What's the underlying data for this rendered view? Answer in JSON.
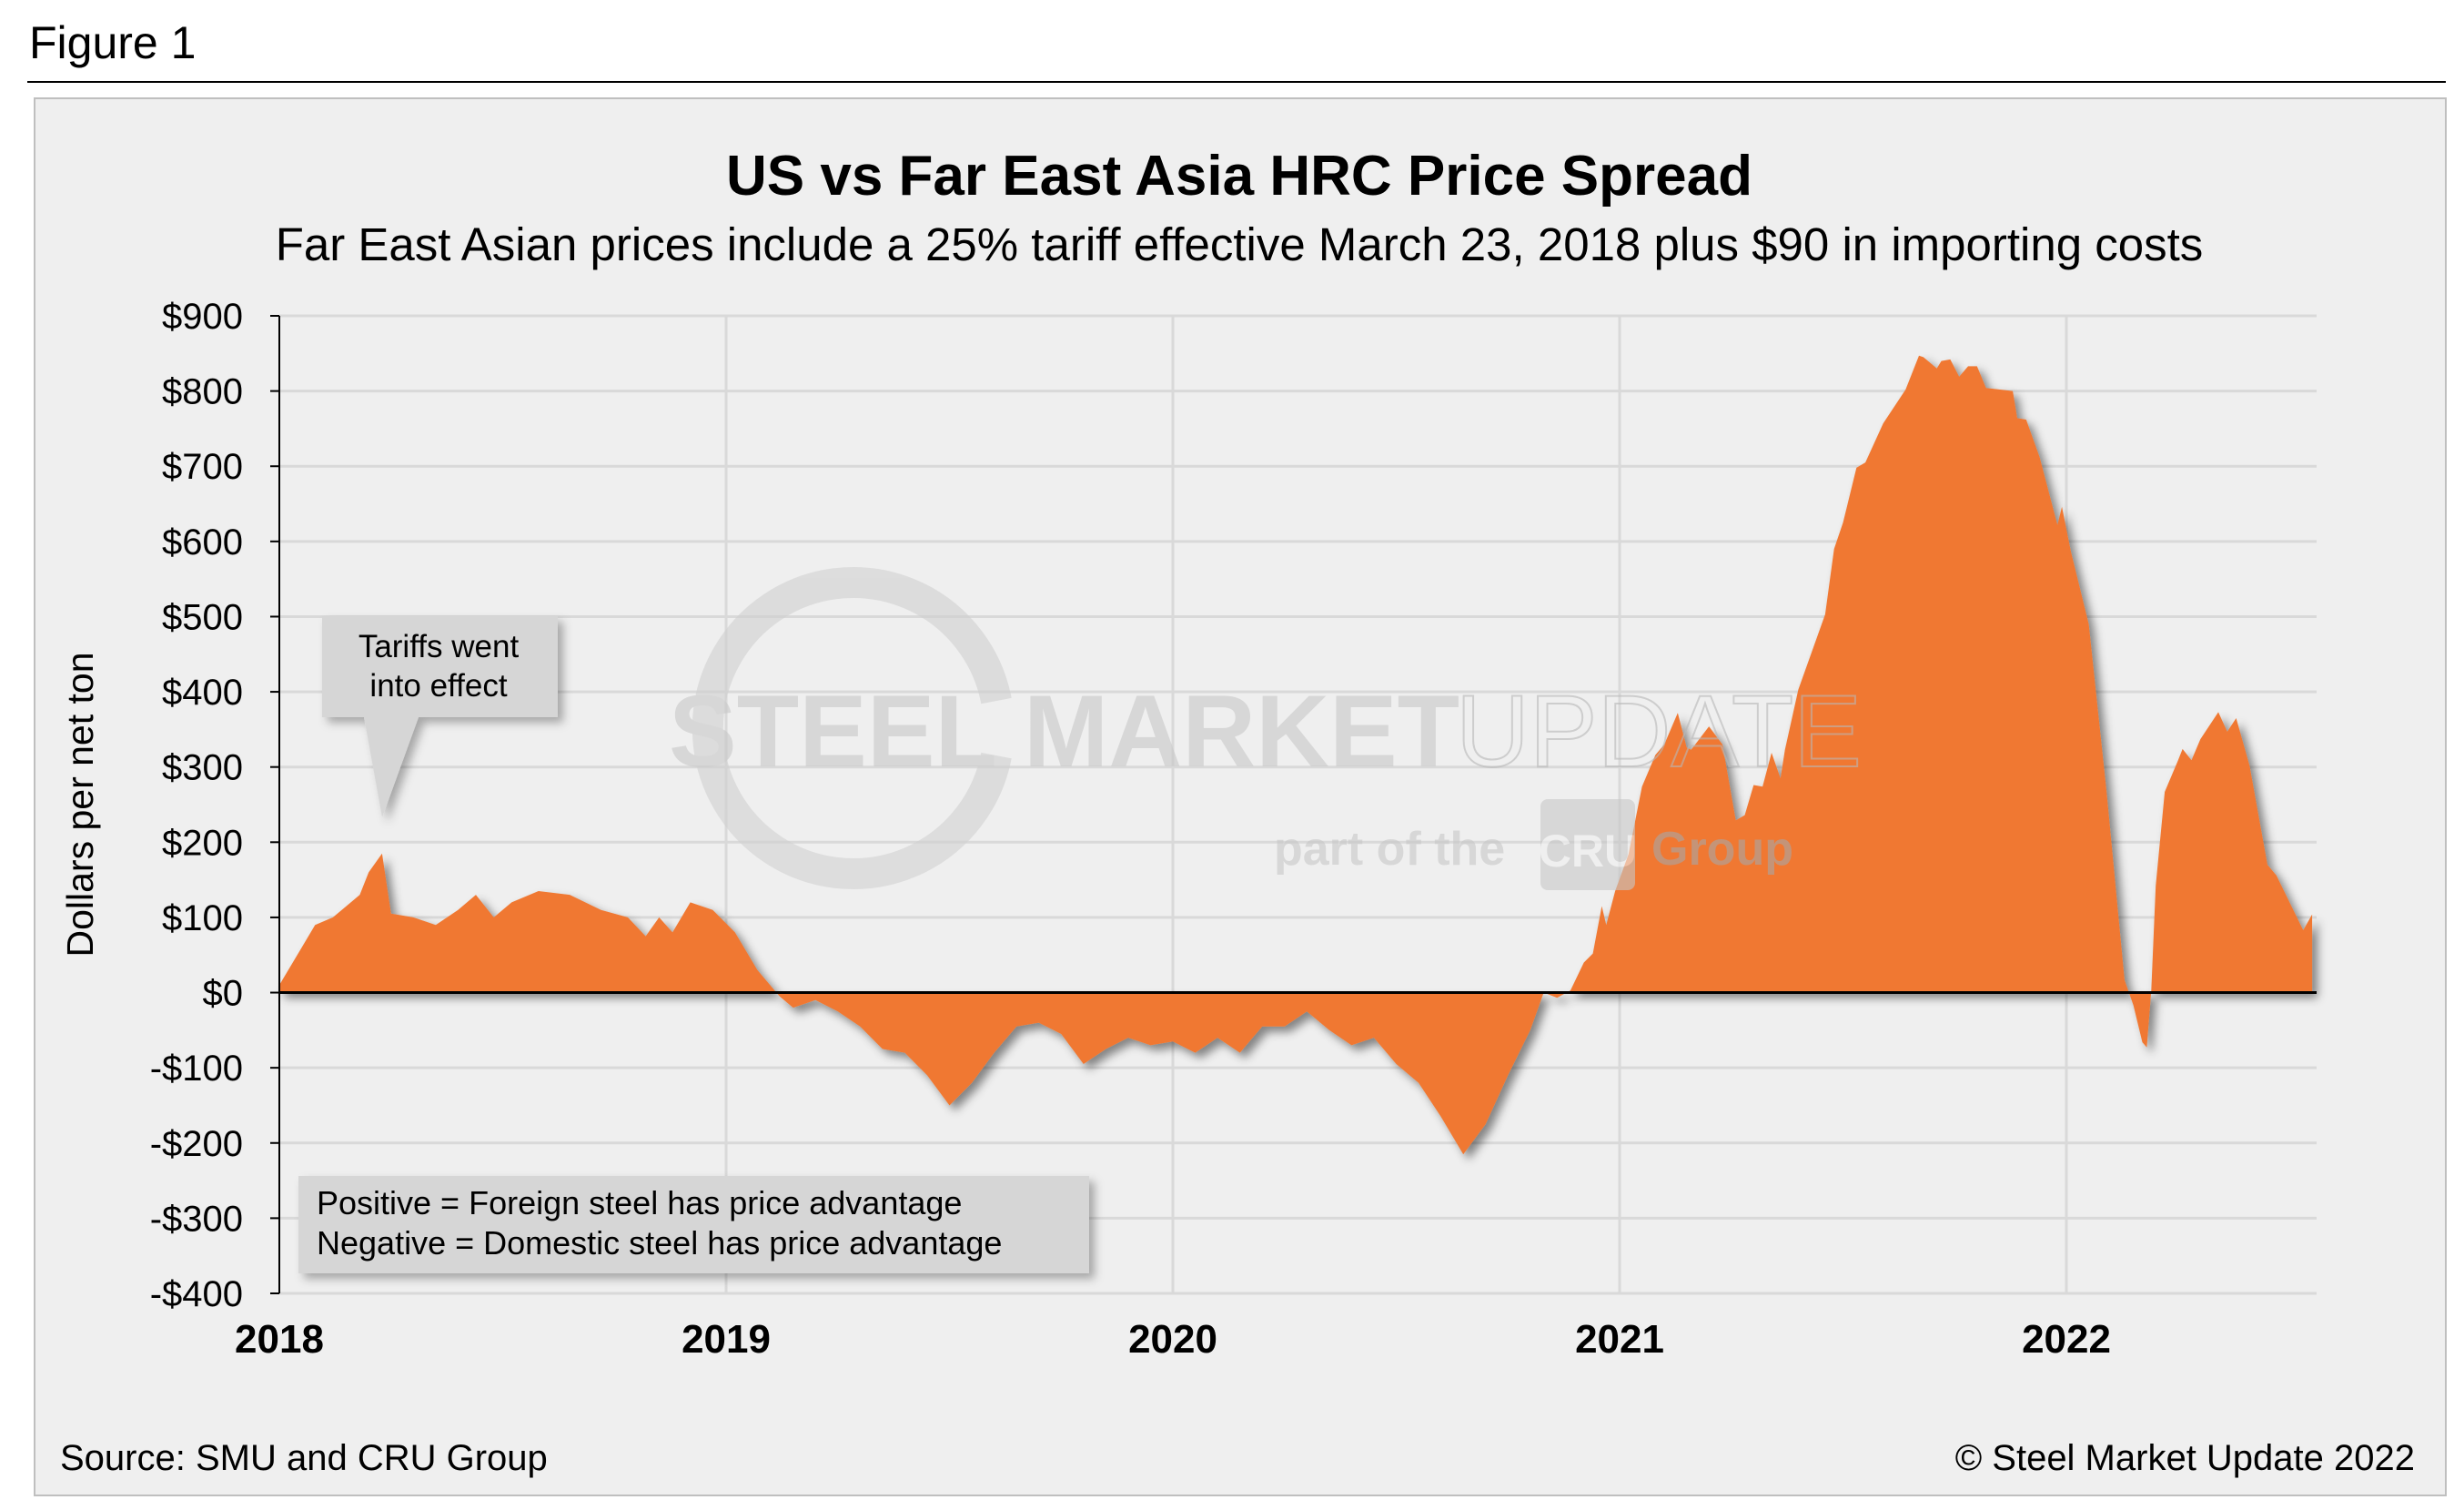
{
  "figure_label": "Figure 1",
  "source": "Source: SMU and CRU Group",
  "copyright": "© Steel Market Update 2022",
  "watermark": {
    "line1_bold": "STEEL MARKET",
    "line1_light": "UPDATE",
    "line2_a": "part of the",
    "line2_logo": "CRU",
    "line2_b": "Group"
  },
  "colors": {
    "area": "#F07830",
    "panel": "#EFEFEF",
    "grid": "#D9D9D9",
    "callout": "#D6D6D6"
  },
  "chart_data": {
    "type": "area",
    "title": "US vs Far East Asia HRC Price Spread",
    "subtitle": "Far East Asian prices include a 25% tariff effective March 23, 2018 plus $90 in importing costs",
    "xlabel": "",
    "ylabel": "Dollars per net ton",
    "xlim": [
      2018,
      2022.56
    ],
    "ylim": [
      -400,
      900
    ],
    "grid": true,
    "x_ticks": [
      2018,
      2019,
      2020,
      2021,
      2022
    ],
    "x_tick_labels": [
      "2018",
      "2019",
      "2020",
      "2021",
      "2022"
    ],
    "y_ticks": [
      900,
      800,
      700,
      600,
      500,
      400,
      300,
      200,
      100,
      0,
      -100,
      -200,
      -300,
      -400
    ],
    "y_tick_labels": [
      "$900",
      "$800",
      "$700",
      "$600",
      "$500",
      "$400",
      "$300",
      "$200",
      "$100",
      "$0",
      "-$100",
      "-$200",
      "-$300",
      "-$400"
    ],
    "annotations": [
      {
        "text_lines": [
          "Tariffs went",
          "into effect"
        ],
        "x": 2018.23,
        "y": 185
      },
      {
        "text_lines": [
          "Positive = Foreign steel has price advantage",
          "Negative = Domestic steel has price advantage"
        ],
        "placement": "bottom-left"
      }
    ],
    "series": [
      {
        "name": "US vs Far East Asia HRC spread",
        "x": [
          2018.0,
          2018.05,
          2018.08,
          2018.12,
          2018.15,
          2018.18,
          2018.2,
          2018.23,
          2018.25,
          2018.3,
          2018.35,
          2018.4,
          2018.44,
          2018.48,
          2018.52,
          2018.58,
          2018.65,
          2018.72,
          2018.78,
          2018.82,
          2018.85,
          2018.88,
          2018.92,
          2018.97,
          2019.02,
          2019.07,
          2019.12,
          2019.15,
          2019.2,
          2019.25,
          2019.3,
          2019.35,
          2019.4,
          2019.45,
          2019.5,
          2019.55,
          2019.6,
          2019.65,
          2019.7,
          2019.75,
          2019.8,
          2019.85,
          2019.9,
          2019.95,
          2020.0,
          2020.05,
          2020.1,
          2020.15,
          2020.2,
          2020.25,
          2020.3,
          2020.35,
          2020.4,
          2020.45,
          2020.5,
          2020.55,
          2020.6,
          2020.65,
          2020.7,
          2020.75,
          2020.8,
          2020.83,
          2020.86,
          2020.89,
          2020.92,
          2020.94,
          2020.96,
          2020.97,
          2020.99,
          2021.02,
          2021.05,
          2021.08,
          2021.1,
          2021.13,
          2021.15,
          2021.16,
          2021.2,
          2021.23,
          2021.26,
          2021.28,
          2021.3,
          2021.32,
          2021.34,
          2021.36,
          2021.37,
          2021.4,
          2021.46,
          2021.48,
          2021.5,
          2021.51,
          2021.53,
          2021.55,
          2021.59,
          2021.64,
          2021.67,
          2021.68,
          2021.71,
          2021.72,
          2021.74,
          2021.76,
          2021.78,
          2021.8,
          2021.82,
          2021.88,
          2021.89,
          2021.91,
          2021.94,
          2021.98,
          2021.99,
          2022.01,
          2022.05,
          2022.09,
          2022.13,
          2022.15,
          2022.17,
          2022.18,
          2022.19,
          2022.2,
          2022.22,
          2022.25,
          2022.26,
          2022.28,
          2022.3,
          2022.34,
          2022.36,
          2022.38,
          2022.41,
          2022.45,
          2022.47,
          2022.53,
          2022.55
        ],
        "y": [
          10,
          60,
          90,
          100,
          115,
          130,
          160,
          185,
          105,
          100,
          90,
          110,
          130,
          100,
          120,
          135,
          130,
          110,
          100,
          75,
          100,
          80,
          120,
          110,
          80,
          30,
          -5,
          -20,
          -10,
          -25,
          -45,
          -75,
          -80,
          -110,
          -150,
          -120,
          -80,
          -45,
          -40,
          -55,
          -95,
          -75,
          -60,
          -70,
          -65,
          -80,
          -60,
          -80,
          -45,
          -45,
          -25,
          -50,
          -70,
          -60,
          -95,
          -120,
          -165,
          -215,
          -175,
          -110,
          -50,
          0,
          -7,
          3,
          40,
          52,
          115,
          90,
          135,
          184,
          274,
          316,
          330,
          372,
          326,
          323,
          354,
          330,
          229,
          236,
          276,
          274,
          319,
          285,
          323,
          403,
          503,
          590,
          625,
          649,
          698,
          705,
          757,
          802,
          847,
          845,
          830,
          840,
          842,
          819,
          833,
          833,
          804,
          800,
          764,
          762,
          712,
          622,
          646,
          587,
          490,
          267,
          17,
          -17,
          -66,
          -73,
          3,
          142,
          267,
          309,
          324,
          309,
          337,
          373,
          347,
          365,
          302,
          170,
          156,
          83,
          104
        ]
      }
    ]
  }
}
